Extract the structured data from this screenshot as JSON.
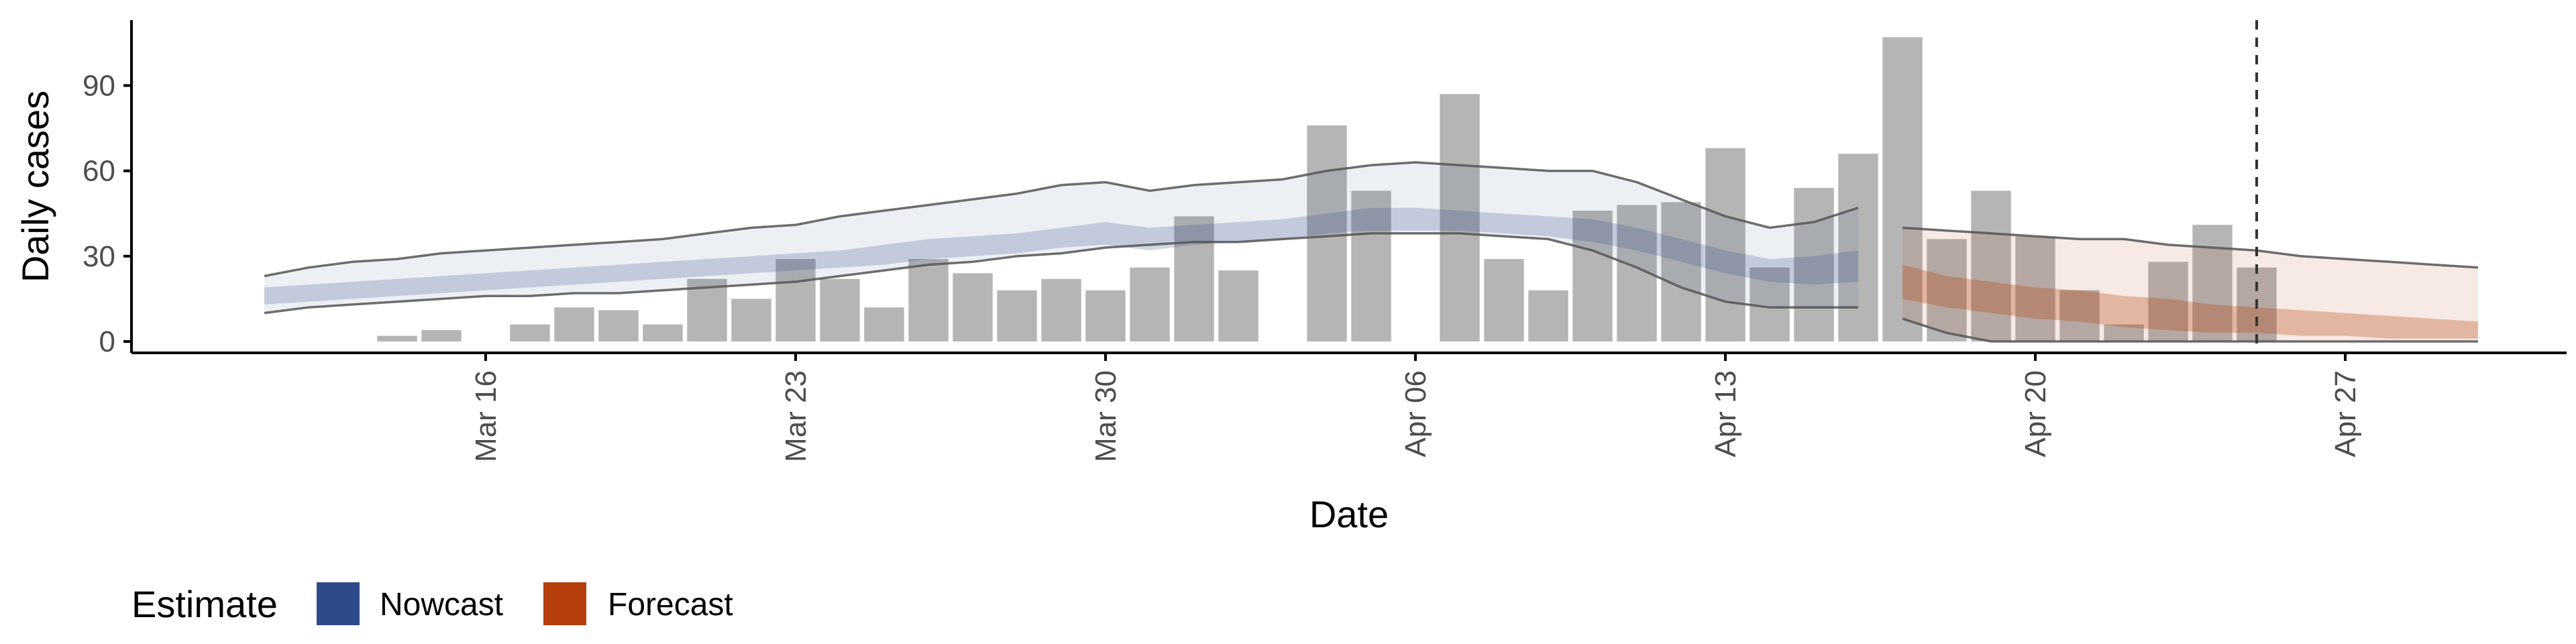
{
  "chart_data": {
    "type": "bar",
    "title": "",
    "xlabel": "Date",
    "ylabel": "Daily cases",
    "ylim": [
      -4,
      113
    ],
    "yticks": [
      0,
      30,
      60,
      90
    ],
    "xlim": [
      "2020-03-08",
      "2020-05-02"
    ],
    "xtick_dates": [
      "2020-03-16",
      "2020-03-23",
      "2020-03-30",
      "2020-04-06",
      "2020-04-13",
      "2020-04-20",
      "2020-04-27"
    ],
    "xtick_labels": [
      "Mar 16",
      "Mar 23",
      "Mar 30",
      "Apr 06",
      "Apr 13",
      "Apr 20",
      "Apr 27"
    ],
    "grid": false,
    "vline_date": "2020-04-25",
    "legend": {
      "title": "Estimate",
      "position": "bottom-left",
      "entries": [
        {
          "label": "Nowcast",
          "color": "#2F4A8A"
        },
        {
          "label": "Forecast",
          "color": "#B5400D"
        }
      ]
    },
    "colors": {
      "bars": "#B5B5B5",
      "nowcast": "#2F4A8A",
      "forecast": "#B5400D",
      "bound_lines": "#555555",
      "axis": "#000000"
    },
    "reported_cases": [
      {
        "date": "2020-03-14",
        "value": 2
      },
      {
        "date": "2020-03-15",
        "value": 4
      },
      {
        "date": "2020-03-17",
        "value": 6
      },
      {
        "date": "2020-03-18",
        "value": 12
      },
      {
        "date": "2020-03-19",
        "value": 11
      },
      {
        "date": "2020-03-20",
        "value": 6
      },
      {
        "date": "2020-03-21",
        "value": 22
      },
      {
        "date": "2020-03-22",
        "value": 15
      },
      {
        "date": "2020-03-23",
        "value": 29
      },
      {
        "date": "2020-03-24",
        "value": 22
      },
      {
        "date": "2020-03-25",
        "value": 12
      },
      {
        "date": "2020-03-26",
        "value": 29
      },
      {
        "date": "2020-03-27",
        "value": 24
      },
      {
        "date": "2020-03-28",
        "value": 18
      },
      {
        "date": "2020-03-29",
        "value": 22
      },
      {
        "date": "2020-03-30",
        "value": 18
      },
      {
        "date": "2020-03-31",
        "value": 26
      },
      {
        "date": "2020-04-01",
        "value": 44
      },
      {
        "date": "2020-04-02",
        "value": 25
      },
      {
        "date": "2020-04-04",
        "value": 76
      },
      {
        "date": "2020-04-05",
        "value": 53
      },
      {
        "date": "2020-04-07",
        "value": 87
      },
      {
        "date": "2020-04-08",
        "value": 29
      },
      {
        "date": "2020-04-09",
        "value": 18
      },
      {
        "date": "2020-04-10",
        "value": 46
      },
      {
        "date": "2020-04-11",
        "value": 48
      },
      {
        "date": "2020-04-12",
        "value": 49
      },
      {
        "date": "2020-04-13",
        "value": 68
      },
      {
        "date": "2020-04-14",
        "value": 26
      },
      {
        "date": "2020-04-15",
        "value": 54
      },
      {
        "date": "2020-04-16",
        "value": 66
      },
      {
        "date": "2020-04-17",
        "value": 107
      },
      {
        "date": "2020-04-18",
        "value": 36
      },
      {
        "date": "2020-04-19",
        "value": 53
      },
      {
        "date": "2020-04-20",
        "value": 37
      },
      {
        "date": "2020-04-21",
        "value": 18
      },
      {
        "date": "2020-04-22",
        "value": 6
      },
      {
        "date": "2020-04-23",
        "value": 28
      },
      {
        "date": "2020-04-24",
        "value": 41
      },
      {
        "date": "2020-04-25",
        "value": 26
      }
    ],
    "series": [
      {
        "estimate": "Nowcast",
        "date": [
          "2020-03-11",
          "2020-03-12",
          "2020-03-13",
          "2020-03-14",
          "2020-03-15",
          "2020-03-16",
          "2020-03-17",
          "2020-03-18",
          "2020-03-19",
          "2020-03-20",
          "2020-03-21",
          "2020-03-22",
          "2020-03-23",
          "2020-03-24",
          "2020-03-25",
          "2020-03-26",
          "2020-03-27",
          "2020-03-28",
          "2020-03-29",
          "2020-03-30",
          "2020-03-31",
          "2020-04-01",
          "2020-04-02",
          "2020-04-03",
          "2020-04-04",
          "2020-04-05",
          "2020-04-06",
          "2020-04-07",
          "2020-04-08",
          "2020-04-09",
          "2020-04-10",
          "2020-04-11",
          "2020-04-12",
          "2020-04-13",
          "2020-04-14",
          "2020-04-15",
          "2020-04-16"
        ],
        "upper_90": [
          23,
          26,
          28,
          29,
          31,
          32,
          33,
          34,
          35,
          36,
          38,
          40,
          41,
          44,
          46,
          48,
          50,
          52,
          55,
          56,
          53,
          55,
          56,
          57,
          60,
          62,
          63,
          62,
          61,
          60,
          60,
          56,
          50,
          44,
          40,
          42,
          47
        ],
        "upper_50": [
          19,
          20,
          21,
          22,
          23,
          24,
          25,
          26,
          27,
          28,
          29,
          30,
          31,
          32,
          34,
          36,
          37,
          38,
          40,
          42,
          40,
          41,
          42,
          43,
          45,
          47,
          47,
          46,
          45,
          44,
          43,
          40,
          36,
          32,
          29,
          30,
          32
        ],
        "lower_50": [
          13,
          14,
          15,
          16,
          17,
          18,
          19,
          20,
          21,
          22,
          23,
          24,
          25,
          26,
          27,
          29,
          30,
          31,
          33,
          34,
          32,
          34,
          35,
          36,
          38,
          39,
          39,
          39,
          38,
          37,
          35,
          32,
          28,
          24,
          21,
          20,
          21
        ],
        "lower_90": [
          10,
          12,
          13,
          14,
          15,
          16,
          16,
          17,
          17,
          18,
          19,
          20,
          21,
          23,
          25,
          27,
          28,
          30,
          31,
          33,
          34,
          35,
          35,
          36,
          37,
          38,
          38,
          38,
          37,
          36,
          32,
          26,
          19,
          14,
          12,
          12,
          12
        ]
      },
      {
        "estimate": "Forecast",
        "date": [
          "2020-04-17",
          "2020-04-18",
          "2020-04-19",
          "2020-04-20",
          "2020-04-21",
          "2020-04-22",
          "2020-04-23",
          "2020-04-24",
          "2020-04-25",
          "2020-04-26",
          "2020-04-27",
          "2020-04-28",
          "2020-04-29",
          "2020-04-30"
        ],
        "upper_90": [
          40,
          39,
          38,
          37,
          36,
          36,
          34,
          33,
          32,
          30,
          29,
          28,
          27,
          26
        ],
        "upper_50": [
          27,
          23,
          21,
          19,
          18,
          16,
          15,
          13,
          12,
          11,
          10,
          9,
          8,
          7
        ],
        "lower_50": [
          15,
          12,
          10,
          8,
          7,
          5,
          4,
          3,
          3,
          2,
          2,
          1,
          1,
          1
        ],
        "lower_90": [
          8,
          3,
          0,
          0,
          0,
          0,
          0,
          0,
          0,
          0,
          0,
          0,
          0,
          0
        ]
      }
    ]
  }
}
